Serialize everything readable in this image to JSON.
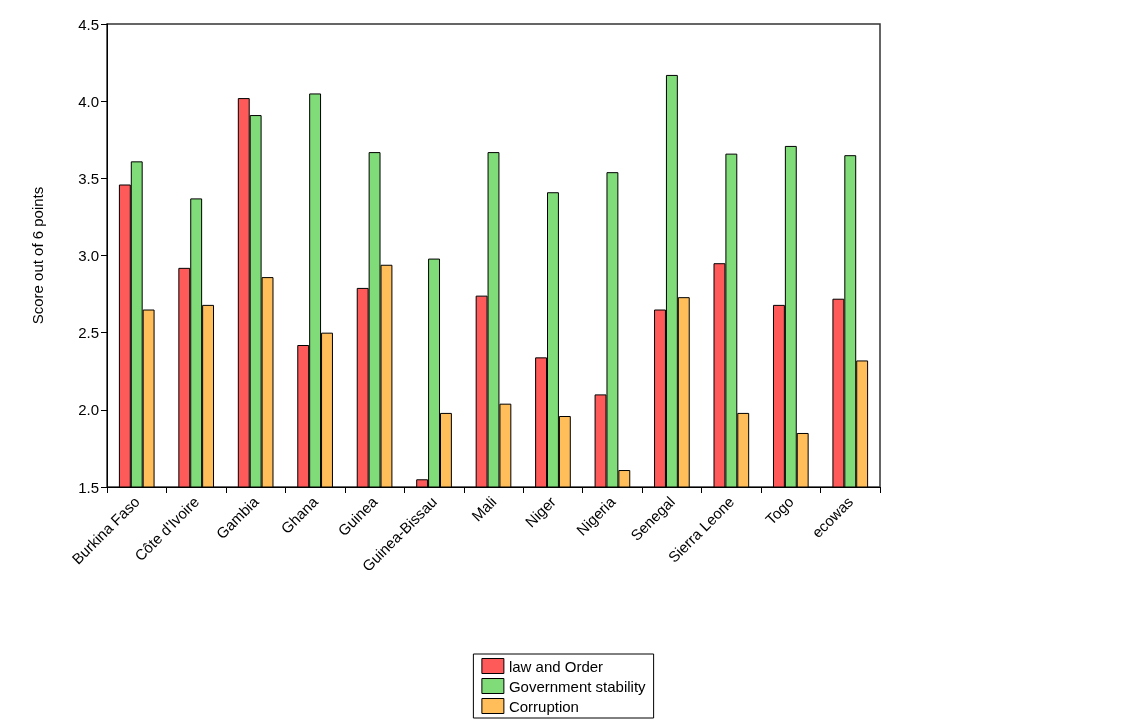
{
  "chart_data": {
    "type": "bar",
    "ylabel": "Score out of 6 points",
    "categories": [
      "Burkina Faso",
      "Côte d'Ivoire",
      "Gambia",
      "Ghana",
      "Guinea",
      "Guinea-Bissau",
      "Mali",
      "Niger",
      "Nigeria",
      "Senegal",
      "Sierra Leone",
      "Togo",
      "ecowas"
    ],
    "series": [
      {
        "name": "law and Order",
        "color": "#ff5a5a",
        "values": [
          3.46,
          2.92,
          4.02,
          2.42,
          2.79,
          1.55,
          2.74,
          2.34,
          2.1,
          2.65,
          2.95,
          2.68,
          2.72
        ]
      },
      {
        "name": "Government stability",
        "color": "#80dc78",
        "values": [
          3.61,
          3.37,
          3.91,
          4.05,
          3.67,
          2.98,
          3.67,
          3.41,
          3.54,
          4.17,
          3.66,
          3.71,
          3.65
        ]
      },
      {
        "name": "Corruption",
        "color": "#ffbe5a",
        "values": [
          2.65,
          2.68,
          2.86,
          2.5,
          2.94,
          1.98,
          2.04,
          1.96,
          1.61,
          2.73,
          1.98,
          1.85,
          2.32
        ]
      }
    ],
    "ylim": [
      1.5,
      4.5
    ],
    "yticks": [
      {
        "value": 1.5,
        "label": "1.5"
      },
      {
        "value": 2,
        "label": "2.0"
      },
      {
        "value": 2.5,
        "label": "2.5"
      },
      {
        "value": 3,
        "label": "3.0"
      },
      {
        "value": 3.5,
        "label": "3.5"
      },
      {
        "value": 4,
        "label": "4.0"
      },
      {
        "value": 4.5,
        "label": "4.5"
      }
    ],
    "grid": false,
    "legend": "bottom"
  }
}
